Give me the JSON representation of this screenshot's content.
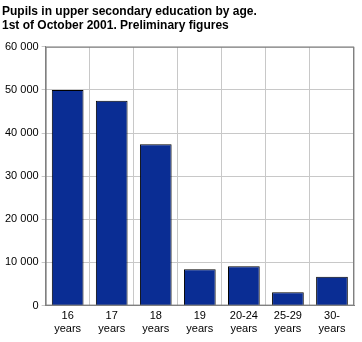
{
  "chart_data": {
    "type": "bar",
    "title": [
      "Pupils in upper secondary education by age.",
      "1st of October 2001. Preliminary figures"
    ],
    "categories": [
      [
        "16",
        "years"
      ],
      [
        "17",
        "years"
      ],
      [
        "18",
        "years"
      ],
      [
        "19",
        "years"
      ],
      [
        "20-24",
        "years"
      ],
      [
        "25-29",
        "years"
      ],
      [
        "30-",
        "years"
      ]
    ],
    "values": [
      50000,
      47500,
      37400,
      8400,
      9100,
      3100,
      6700
    ],
    "color": "#0a2d94",
    "ylim": [
      0,
      60000
    ],
    "yticks": [
      0,
      {
        "value": 10000,
        "label": "10 000"
      },
      {
        "value": 20000,
        "label": "20 000"
      },
      {
        "value": 30000,
        "label": "30 000"
      },
      {
        "value": 40000,
        "label": "40 000"
      },
      {
        "value": 50000,
        "label": "50 000"
      },
      {
        "value": 60000,
        "label": "60 000"
      }
    ],
    "grid": true
  }
}
